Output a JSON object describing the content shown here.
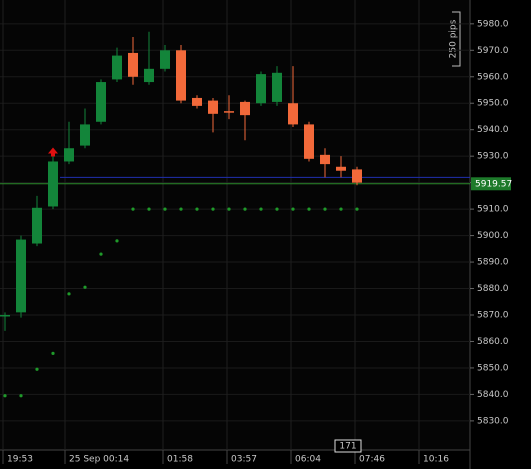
{
  "chart_data": {
    "type": "candlestick",
    "x": [
      0,
      1,
      2,
      3,
      4,
      5,
      6,
      7,
      8,
      9,
      10,
      11,
      12,
      13,
      14,
      15,
      16,
      17,
      18,
      19,
      20,
      21,
      22
    ],
    "open": [
      5869.5,
      5871,
      5897,
      5911,
      5928,
      5934,
      5943,
      5959,
      5969,
      5958,
      5963,
      5970,
      5952,
      5951,
      5947,
      5950.5,
      5950,
      5950.5,
      5950,
      5942,
      5930.5,
      5926,
      5925
    ],
    "high": [
      5871,
      5900,
      5915,
      5931,
      5943,
      5948,
      5959,
      5971,
      5975,
      5977,
      5972,
      5972,
      5953,
      5952,
      5953,
      5951,
      5962,
      5964,
      5964,
      5943,
      5933,
      5930,
      5926
    ],
    "low": [
      5864,
      5869,
      5896,
      5910,
      5927,
      5933,
      5942,
      5958,
      5957,
      5957,
      5962,
      5950,
      5948,
      5939,
      5944,
      5936,
      5949,
      5949,
      5941,
      5928,
      5922,
      5922,
      5919
    ],
    "close": [
      5870,
      5898.5,
      5910.5,
      5928,
      5933,
      5942,
      5958,
      5968,
      5960,
      5963,
      5970,
      5951,
      5949,
      5946,
      5946.5,
      5945.5,
      5961,
      5961.5,
      5942,
      5929,
      5927,
      5924.5,
      5920
    ],
    "sar": [
      5839.5,
      5839.5,
      5849.5,
      5855.5,
      5878,
      5880.5,
      5893,
      5898,
      5910,
      5910,
      5910,
      5910,
      5910,
      5910,
      5910,
      5910,
      5910,
      5910,
      5910,
      5910,
      5910,
      5910,
      5910
    ],
    "up_color": "#13853a",
    "down_color": "#f2693a",
    "sar_color": "#1f9a2a",
    "current_price": 5919.57,
    "current_price_label": "5919.57",
    "current_price_color": "#2a8a2a",
    "blue_line": 5922,
    "blue_line_color": "#1f2fb0",
    "xlim": [
      -0.3125,
      29.0625
    ],
    "ylim": [
      5819,
      5989
    ],
    "xticks": [
      {
        "value": -0.125,
        "label": "19:53"
      },
      {
        "value": 3.75,
        "label": "25 Sep 00:14"
      },
      {
        "value": 9.875,
        "label": "01:58"
      },
      {
        "value": 13.875,
        "label": "03:57"
      },
      {
        "value": 17.875,
        "label": "06:04"
      },
      {
        "value": 21.875,
        "label": "07:46"
      },
      {
        "value": 25.875,
        "label": "10:16"
      }
    ],
    "yticks": [
      {
        "value": 5830,
        "label": "5830.0"
      },
      {
        "value": 5840,
        "label": "5840.0"
      },
      {
        "value": 5850,
        "label": "5850.0"
      },
      {
        "value": 5860,
        "label": "5860.0"
      },
      {
        "value": 5870,
        "label": "5870.0"
      },
      {
        "value": 5880,
        "label": "5880.0"
      },
      {
        "value": 5890,
        "label": "5890.0"
      },
      {
        "value": 5900,
        "label": "5900.0"
      },
      {
        "value": 5910,
        "label": "5910.0"
      },
      {
        "value": 5920,
        "label": "5920.0"
      },
      {
        "value": 5930,
        "label": "5930.0"
      },
      {
        "value": 5940,
        "label": "5940.0"
      },
      {
        "value": 5950,
        "label": "5950.0"
      },
      {
        "value": 5960,
        "label": "5960.0"
      },
      {
        "value": 5970,
        "label": "5970.0"
      },
      {
        "value": 5980,
        "label": "5980.0"
      }
    ],
    "grid": true,
    "scale_label": "250 pips",
    "cursor_label": "171"
  }
}
